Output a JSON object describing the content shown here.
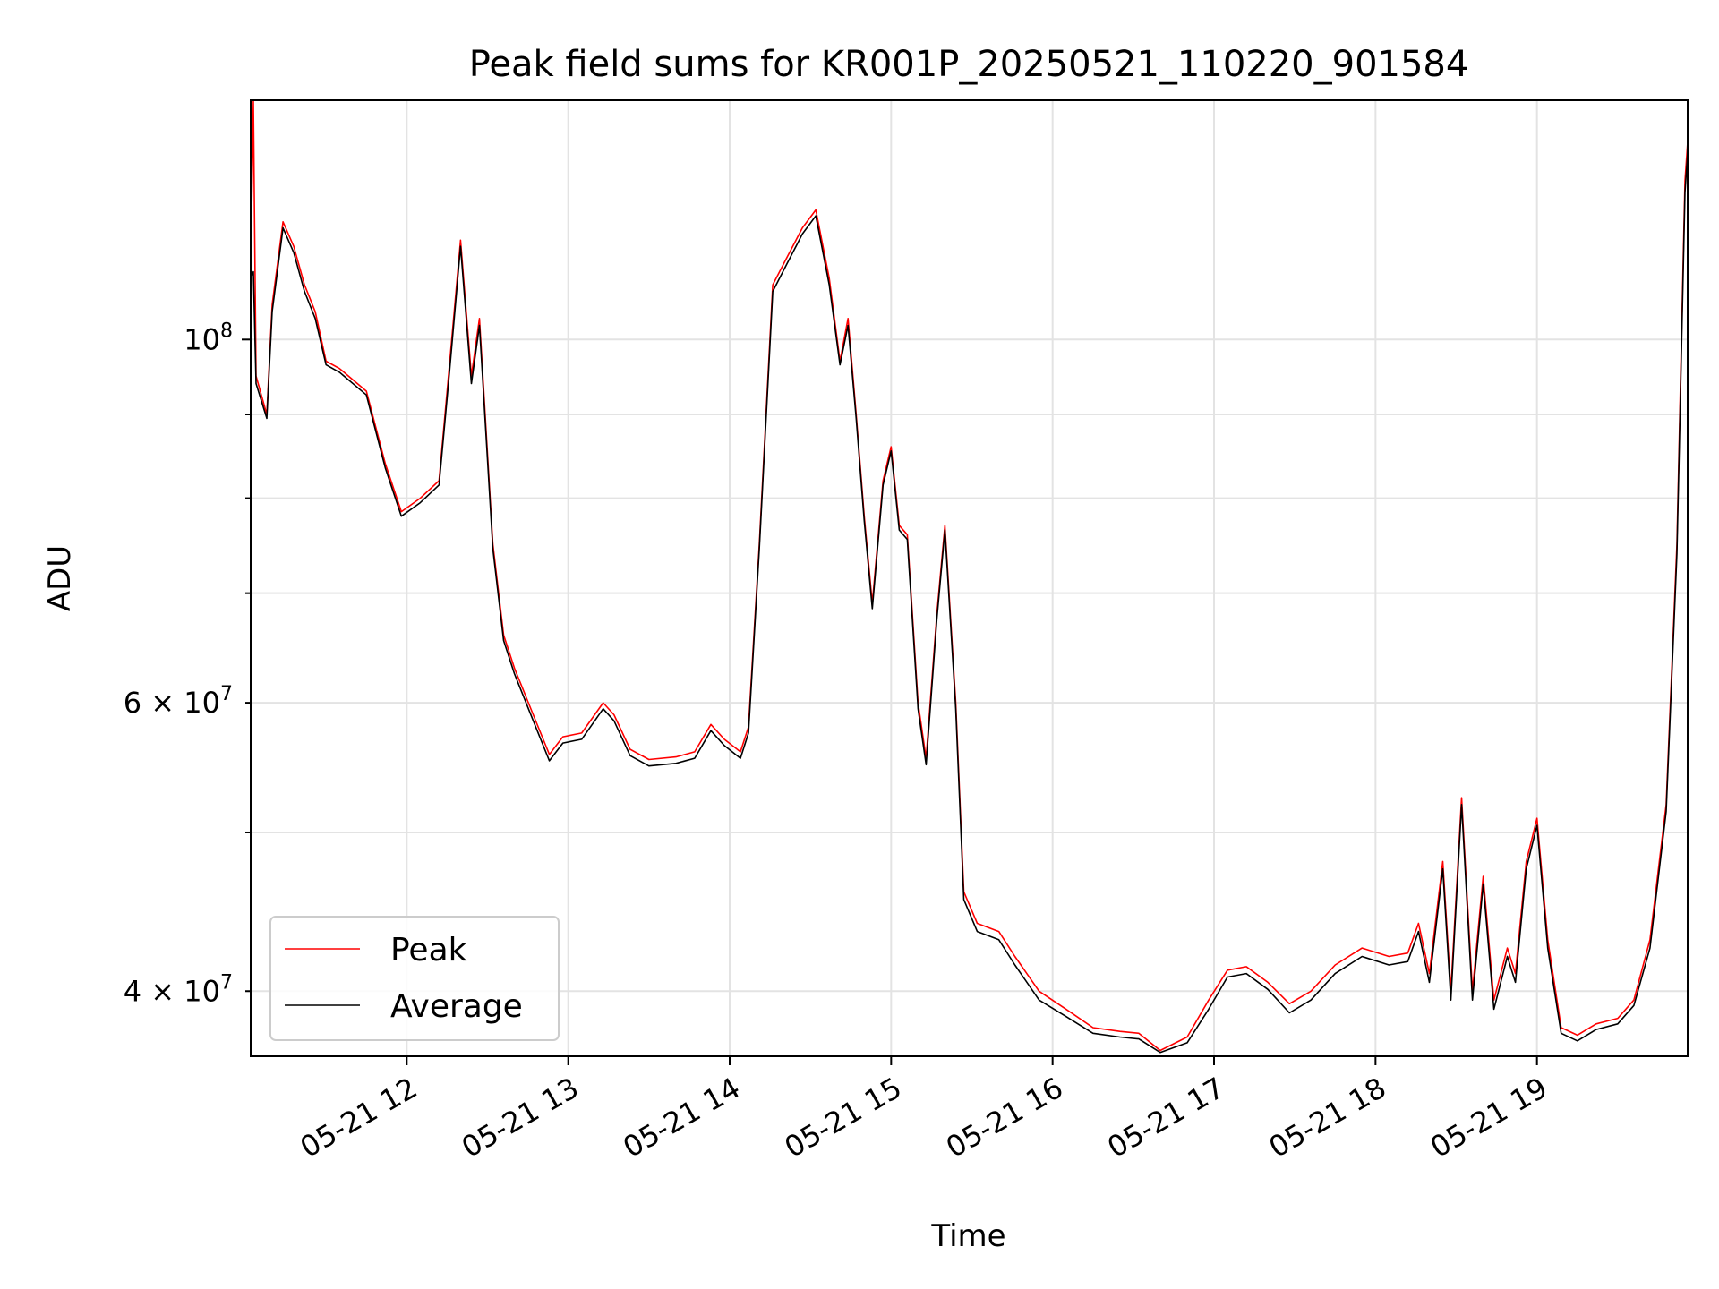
{
  "chart_data": {
    "type": "line",
    "title": "Peak field sums for KR001P_20250521_110220_901584",
    "xlabel": "Time",
    "ylabel": "ADU",
    "yscale": "log",
    "grid": true,
    "legend_position": "lower-left",
    "xlim": [
      "2025-05-21 11:02",
      "2025-05-21 19:56"
    ],
    "ylim": [
      36500000,
      140000000
    ],
    "x_ticks": [
      {
        "t": "2025-05-21 12:00",
        "label": "05-21 12"
      },
      {
        "t": "2025-05-21 13:00",
        "label": "05-21 13"
      },
      {
        "t": "2025-05-21 14:00",
        "label": "05-21 14"
      },
      {
        "t": "2025-05-21 15:00",
        "label": "05-21 15"
      },
      {
        "t": "2025-05-21 16:00",
        "label": "05-21 16"
      },
      {
        "t": "2025-05-21 17:00",
        "label": "05-21 17"
      },
      {
        "t": "2025-05-21 18:00",
        "label": "05-21 18"
      },
      {
        "t": "2025-05-21 19:00",
        "label": "05-21 19"
      }
    ],
    "y_ticks_major": [
      {
        "v": 100000000,
        "mant": "10",
        "exp": "8"
      }
    ],
    "y_ticks_minor": [
      {
        "v": 40000000,
        "mant": "4 × 10",
        "exp": "7"
      },
      {
        "v": 50000000,
        "mant": "",
        "exp": ""
      },
      {
        "v": 60000000,
        "mant": "6 × 10",
        "exp": "7"
      },
      {
        "v": 70000000,
        "mant": "",
        "exp": ""
      },
      {
        "v": 80000000,
        "mant": "",
        "exp": ""
      },
      {
        "v": 90000000,
        "mant": "",
        "exp": ""
      }
    ],
    "series": [
      {
        "name": "Peak",
        "color": "#ff0000",
        "points": [
          [
            "2025-05-21 11:02",
            110000000
          ],
          [
            "2025-05-21 11:03",
            140000000
          ],
          [
            "2025-05-21 11:04",
            95000000
          ],
          [
            "2025-05-21 11:08",
            90000000
          ],
          [
            "2025-05-21 11:10",
            105000000
          ],
          [
            "2025-05-21 11:14",
            118000000
          ],
          [
            "2025-05-21 11:18",
            114000000
          ],
          [
            "2025-05-21 11:22",
            108000000
          ],
          [
            "2025-05-21 11:26",
            104000000
          ],
          [
            "2025-05-21 11:30",
            97000000
          ],
          [
            "2025-05-21 11:35",
            96000000
          ],
          [
            "2025-05-21 11:45",
            93000000
          ],
          [
            "2025-05-21 11:52",
            84000000
          ],
          [
            "2025-05-21 11:58",
            78500000
          ],
          [
            "2025-05-21 12:05",
            80000000
          ],
          [
            "2025-05-21 12:12",
            82000000
          ],
          [
            "2025-05-21 12:16",
            97000000
          ],
          [
            "2025-05-21 12:20",
            115000000
          ],
          [
            "2025-05-21 12:24",
            95000000
          ],
          [
            "2025-05-21 12:27",
            103000000
          ],
          [
            "2025-05-21 12:32",
            75000000
          ],
          [
            "2025-05-21 12:36",
            66000000
          ],
          [
            "2025-05-21 12:40",
            63000000
          ],
          [
            "2025-05-21 12:47",
            59000000
          ],
          [
            "2025-05-21 12:53",
            55800000
          ],
          [
            "2025-05-21 12:58",
            57200000
          ],
          [
            "2025-05-21 13:05",
            57500000
          ],
          [
            "2025-05-21 13:13",
            60000000
          ],
          [
            "2025-05-21 13:17",
            59000000
          ],
          [
            "2025-05-21 13:23",
            56200000
          ],
          [
            "2025-05-21 13:30",
            55400000
          ],
          [
            "2025-05-21 13:40",
            55600000
          ],
          [
            "2025-05-21 13:47",
            56000000
          ],
          [
            "2025-05-21 13:53",
            58200000
          ],
          [
            "2025-05-21 13:58",
            57000000
          ],
          [
            "2025-05-21 14:04",
            56000000
          ],
          [
            "2025-05-21 14:07",
            58000000
          ],
          [
            "2025-05-21 14:11",
            75000000
          ],
          [
            "2025-05-21 14:16",
            108000000
          ],
          [
            "2025-05-21 14:21",
            112000000
          ],
          [
            "2025-05-21 14:27",
            117000000
          ],
          [
            "2025-05-21 14:32",
            120000000
          ],
          [
            "2025-05-21 14:37",
            109000000
          ],
          [
            "2025-05-21 14:41",
            97000000
          ],
          [
            "2025-05-21 14:44",
            103000000
          ],
          [
            "2025-05-21 14:47",
            90000000
          ],
          [
            "2025-05-21 14:50",
            78000000
          ],
          [
            "2025-05-21 14:53",
            69000000
          ],
          [
            "2025-05-21 14:57",
            82000000
          ],
          [
            "2025-05-21 15:00",
            86000000
          ],
          [
            "2025-05-21 15:03",
            77000000
          ],
          [
            "2025-05-21 15:06",
            76000000
          ],
          [
            "2025-05-21 15:10",
            60000000
          ],
          [
            "2025-05-21 15:13",
            55500000
          ],
          [
            "2025-05-21 15:17",
            68000000
          ],
          [
            "2025-05-21 15:20",
            77000000
          ],
          [
            "2025-05-21 15:24",
            60000000
          ],
          [
            "2025-05-21 15:27",
            46000000
          ],
          [
            "2025-05-21 15:32",
            44000000
          ],
          [
            "2025-05-21 15:40",
            43500000
          ],
          [
            "2025-05-21 15:46",
            42000000
          ],
          [
            "2025-05-21 15:55",
            40000000
          ],
          [
            "2025-05-21 16:05",
            39000000
          ],
          [
            "2025-05-21 16:15",
            38000000
          ],
          [
            "2025-05-21 16:25",
            37800000
          ],
          [
            "2025-05-21 16:32",
            37700000
          ],
          [
            "2025-05-21 16:40",
            36800000
          ],
          [
            "2025-05-21 16:50",
            37500000
          ],
          [
            "2025-05-21 16:58",
            39500000
          ],
          [
            "2025-05-21 17:05",
            41200000
          ],
          [
            "2025-05-21 17:12",
            41400000
          ],
          [
            "2025-05-21 17:20",
            40500000
          ],
          [
            "2025-05-21 17:28",
            39300000
          ],
          [
            "2025-05-21 17:36",
            40000000
          ],
          [
            "2025-05-21 17:45",
            41500000
          ],
          [
            "2025-05-21 17:55",
            42500000
          ],
          [
            "2025-05-21 18:05",
            42000000
          ],
          [
            "2025-05-21 18:12",
            42200000
          ],
          [
            "2025-05-21 18:16",
            44000000
          ],
          [
            "2025-05-21 18:20",
            41000000
          ],
          [
            "2025-05-21 18:25",
            48000000
          ],
          [
            "2025-05-21 18:28",
            40000000
          ],
          [
            "2025-05-21 18:32",
            52500000
          ],
          [
            "2025-05-21 18:36",
            40000000
          ],
          [
            "2025-05-21 18:40",
            47000000
          ],
          [
            "2025-05-21 18:44",
            39500000
          ],
          [
            "2025-05-21 18:49",
            42500000
          ],
          [
            "2025-05-21 18:52",
            41000000
          ],
          [
            "2025-05-21 18:56",
            48000000
          ],
          [
            "2025-05-21 19:00",
            51000000
          ],
          [
            "2025-05-21 19:04",
            43000000
          ],
          [
            "2025-05-21 19:09",
            38000000
          ],
          [
            "2025-05-21 19:15",
            37600000
          ],
          [
            "2025-05-21 19:22",
            38200000
          ],
          [
            "2025-05-21 19:30",
            38500000
          ],
          [
            "2025-05-21 19:36",
            39500000
          ],
          [
            "2025-05-21 19:42",
            43000000
          ],
          [
            "2025-05-21 19:48",
            52000000
          ],
          [
            "2025-05-21 19:52",
            75000000
          ],
          [
            "2025-05-21 19:55",
            125000000
          ],
          [
            "2025-05-21 19:56",
            132000000
          ]
        ]
      },
      {
        "name": "Average",
        "color": "#000000",
        "points": [
          [
            "2025-05-21 11:02",
            109000000
          ],
          [
            "2025-05-21 11:03",
            110000000
          ],
          [
            "2025-05-21 11:04",
            94000000
          ],
          [
            "2025-05-21 11:08",
            89500000
          ],
          [
            "2025-05-21 11:10",
            104000000
          ],
          [
            "2025-05-21 11:14",
            117000000
          ],
          [
            "2025-05-21 11:18",
            113000000
          ],
          [
            "2025-05-21 11:22",
            107000000
          ],
          [
            "2025-05-21 11:26",
            103000000
          ],
          [
            "2025-05-21 11:30",
            96500000
          ],
          [
            "2025-05-21 11:35",
            95500000
          ],
          [
            "2025-05-21 11:45",
            92500000
          ],
          [
            "2025-05-21 11:52",
            83500000
          ],
          [
            "2025-05-21 11:58",
            78000000
          ],
          [
            "2025-05-21 12:05",
            79500000
          ],
          [
            "2025-05-21 12:12",
            81500000
          ],
          [
            "2025-05-21 12:16",
            96000000
          ],
          [
            "2025-05-21 12:20",
            114000000
          ],
          [
            "2025-05-21 12:24",
            94000000
          ],
          [
            "2025-05-21 12:27",
            102000000
          ],
          [
            "2025-05-21 12:32",
            74500000
          ],
          [
            "2025-05-21 12:36",
            65500000
          ],
          [
            "2025-05-21 12:40",
            62500000
          ],
          [
            "2025-05-21 12:47",
            58500000
          ],
          [
            "2025-05-21 12:53",
            55300000
          ],
          [
            "2025-05-21 12:58",
            56700000
          ],
          [
            "2025-05-21 13:05",
            57000000
          ],
          [
            "2025-05-21 13:13",
            59500000
          ],
          [
            "2025-05-21 13:17",
            58500000
          ],
          [
            "2025-05-21 13:23",
            55700000
          ],
          [
            "2025-05-21 13:30",
            54900000
          ],
          [
            "2025-05-21 13:40",
            55100000
          ],
          [
            "2025-05-21 13:47",
            55500000
          ],
          [
            "2025-05-21 13:53",
            57700000
          ],
          [
            "2025-05-21 13:58",
            56500000
          ],
          [
            "2025-05-21 14:04",
            55500000
          ],
          [
            "2025-05-21 14:07",
            57500000
          ],
          [
            "2025-05-21 14:11",
            74500000
          ],
          [
            "2025-05-21 14:16",
            107000000
          ],
          [
            "2025-05-21 14:21",
            111000000
          ],
          [
            "2025-05-21 14:27",
            116000000
          ],
          [
            "2025-05-21 14:32",
            119000000
          ],
          [
            "2025-05-21 14:37",
            108000000
          ],
          [
            "2025-05-21 14:41",
            96500000
          ],
          [
            "2025-05-21 14:44",
            102000000
          ],
          [
            "2025-05-21 14:47",
            89500000
          ],
          [
            "2025-05-21 14:50",
            77500000
          ],
          [
            "2025-05-21 14:53",
            68500000
          ],
          [
            "2025-05-21 14:57",
            81500000
          ],
          [
            "2025-05-21 15:00",
            85500000
          ],
          [
            "2025-05-21 15:03",
            76500000
          ],
          [
            "2025-05-21 15:06",
            75500000
          ],
          [
            "2025-05-21 15:10",
            59500000
          ],
          [
            "2025-05-21 15:13",
            55000000
          ],
          [
            "2025-05-21 15:17",
            67500000
          ],
          [
            "2025-05-21 15:20",
            76500000
          ],
          [
            "2025-05-21 15:24",
            59500000
          ],
          [
            "2025-05-21 15:27",
            45500000
          ],
          [
            "2025-05-21 15:32",
            43500000
          ],
          [
            "2025-05-21 15:40",
            43000000
          ],
          [
            "2025-05-21 15:46",
            41500000
          ],
          [
            "2025-05-21 15:55",
            39500000
          ],
          [
            "2025-05-21 16:05",
            38600000
          ],
          [
            "2025-05-21 16:15",
            37700000
          ],
          [
            "2025-05-21 16:25",
            37500000
          ],
          [
            "2025-05-21 16:32",
            37400000
          ],
          [
            "2025-05-21 16:40",
            36700000
          ],
          [
            "2025-05-21 16:50",
            37200000
          ],
          [
            "2025-05-21 16:58",
            39000000
          ],
          [
            "2025-05-21 17:05",
            40800000
          ],
          [
            "2025-05-21 17:12",
            41000000
          ],
          [
            "2025-05-21 17:20",
            40100000
          ],
          [
            "2025-05-21 17:28",
            38800000
          ],
          [
            "2025-05-21 17:36",
            39500000
          ],
          [
            "2025-05-21 17:45",
            41000000
          ],
          [
            "2025-05-21 17:55",
            42000000
          ],
          [
            "2025-05-21 18:05",
            41500000
          ],
          [
            "2025-05-21 18:12",
            41700000
          ],
          [
            "2025-05-21 18:16",
            43500000
          ],
          [
            "2025-05-21 18:20",
            40500000
          ],
          [
            "2025-05-21 18:25",
            47500000
          ],
          [
            "2025-05-21 18:28",
            39500000
          ],
          [
            "2025-05-21 18:32",
            52000000
          ],
          [
            "2025-05-21 18:36",
            39500000
          ],
          [
            "2025-05-21 18:40",
            46500000
          ],
          [
            "2025-05-21 18:44",
            39000000
          ],
          [
            "2025-05-21 18:49",
            42000000
          ],
          [
            "2025-05-21 18:52",
            40500000
          ],
          [
            "2025-05-21 18:56",
            47500000
          ],
          [
            "2025-05-21 19:00",
            50500000
          ],
          [
            "2025-05-21 19:04",
            42500000
          ],
          [
            "2025-05-21 19:09",
            37700000
          ],
          [
            "2025-05-21 19:15",
            37300000
          ],
          [
            "2025-05-21 19:22",
            37900000
          ],
          [
            "2025-05-21 19:30",
            38200000
          ],
          [
            "2025-05-21 19:36",
            39200000
          ],
          [
            "2025-05-21 19:42",
            42500000
          ],
          [
            "2025-05-21 19:48",
            51500000
          ],
          [
            "2025-05-21 19:52",
            74000000
          ],
          [
            "2025-05-21 19:55",
            123000000
          ],
          [
            "2025-05-21 19:56",
            130000000
          ]
        ]
      }
    ]
  }
}
